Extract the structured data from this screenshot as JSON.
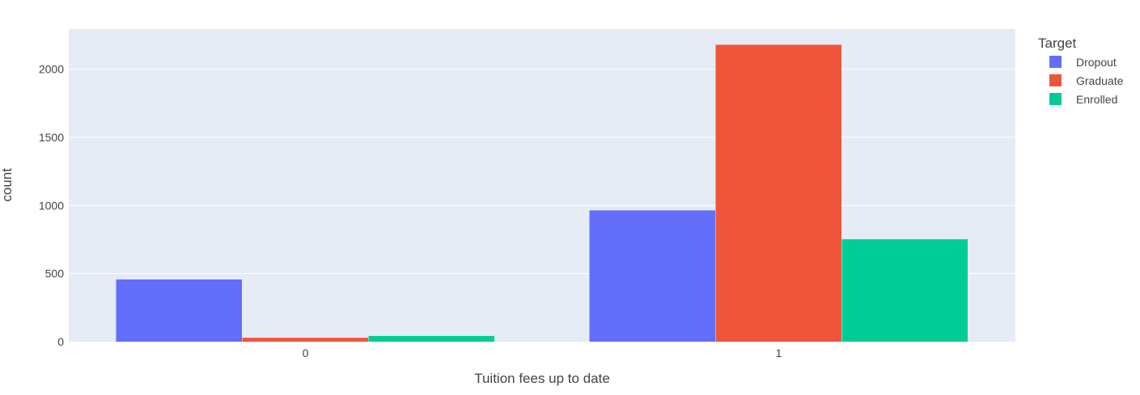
{
  "chart_data": {
    "type": "bar",
    "barmode": "group",
    "categories": [
      "0",
      "1"
    ],
    "series": [
      {
        "name": "Dropout",
        "color": "#636efa",
        "values": [
          457,
          964
        ]
      },
      {
        "name": "Graduate",
        "color": "#ef553b",
        "values": [
          29,
          2180
        ]
      },
      {
        "name": "Enrolled",
        "color": "#00cc96",
        "values": [
          42,
          752
        ]
      }
    ],
    "xlabel": "Tuition fees up to date",
    "ylabel": "count",
    "ylim": [
      0,
      2295
    ],
    "yticks": [
      0,
      500,
      1000,
      1500,
      2000
    ],
    "grid": true,
    "plot_background": "#e5ecf6",
    "legend": {
      "title": "Target",
      "placement": "top-right outside"
    }
  }
}
